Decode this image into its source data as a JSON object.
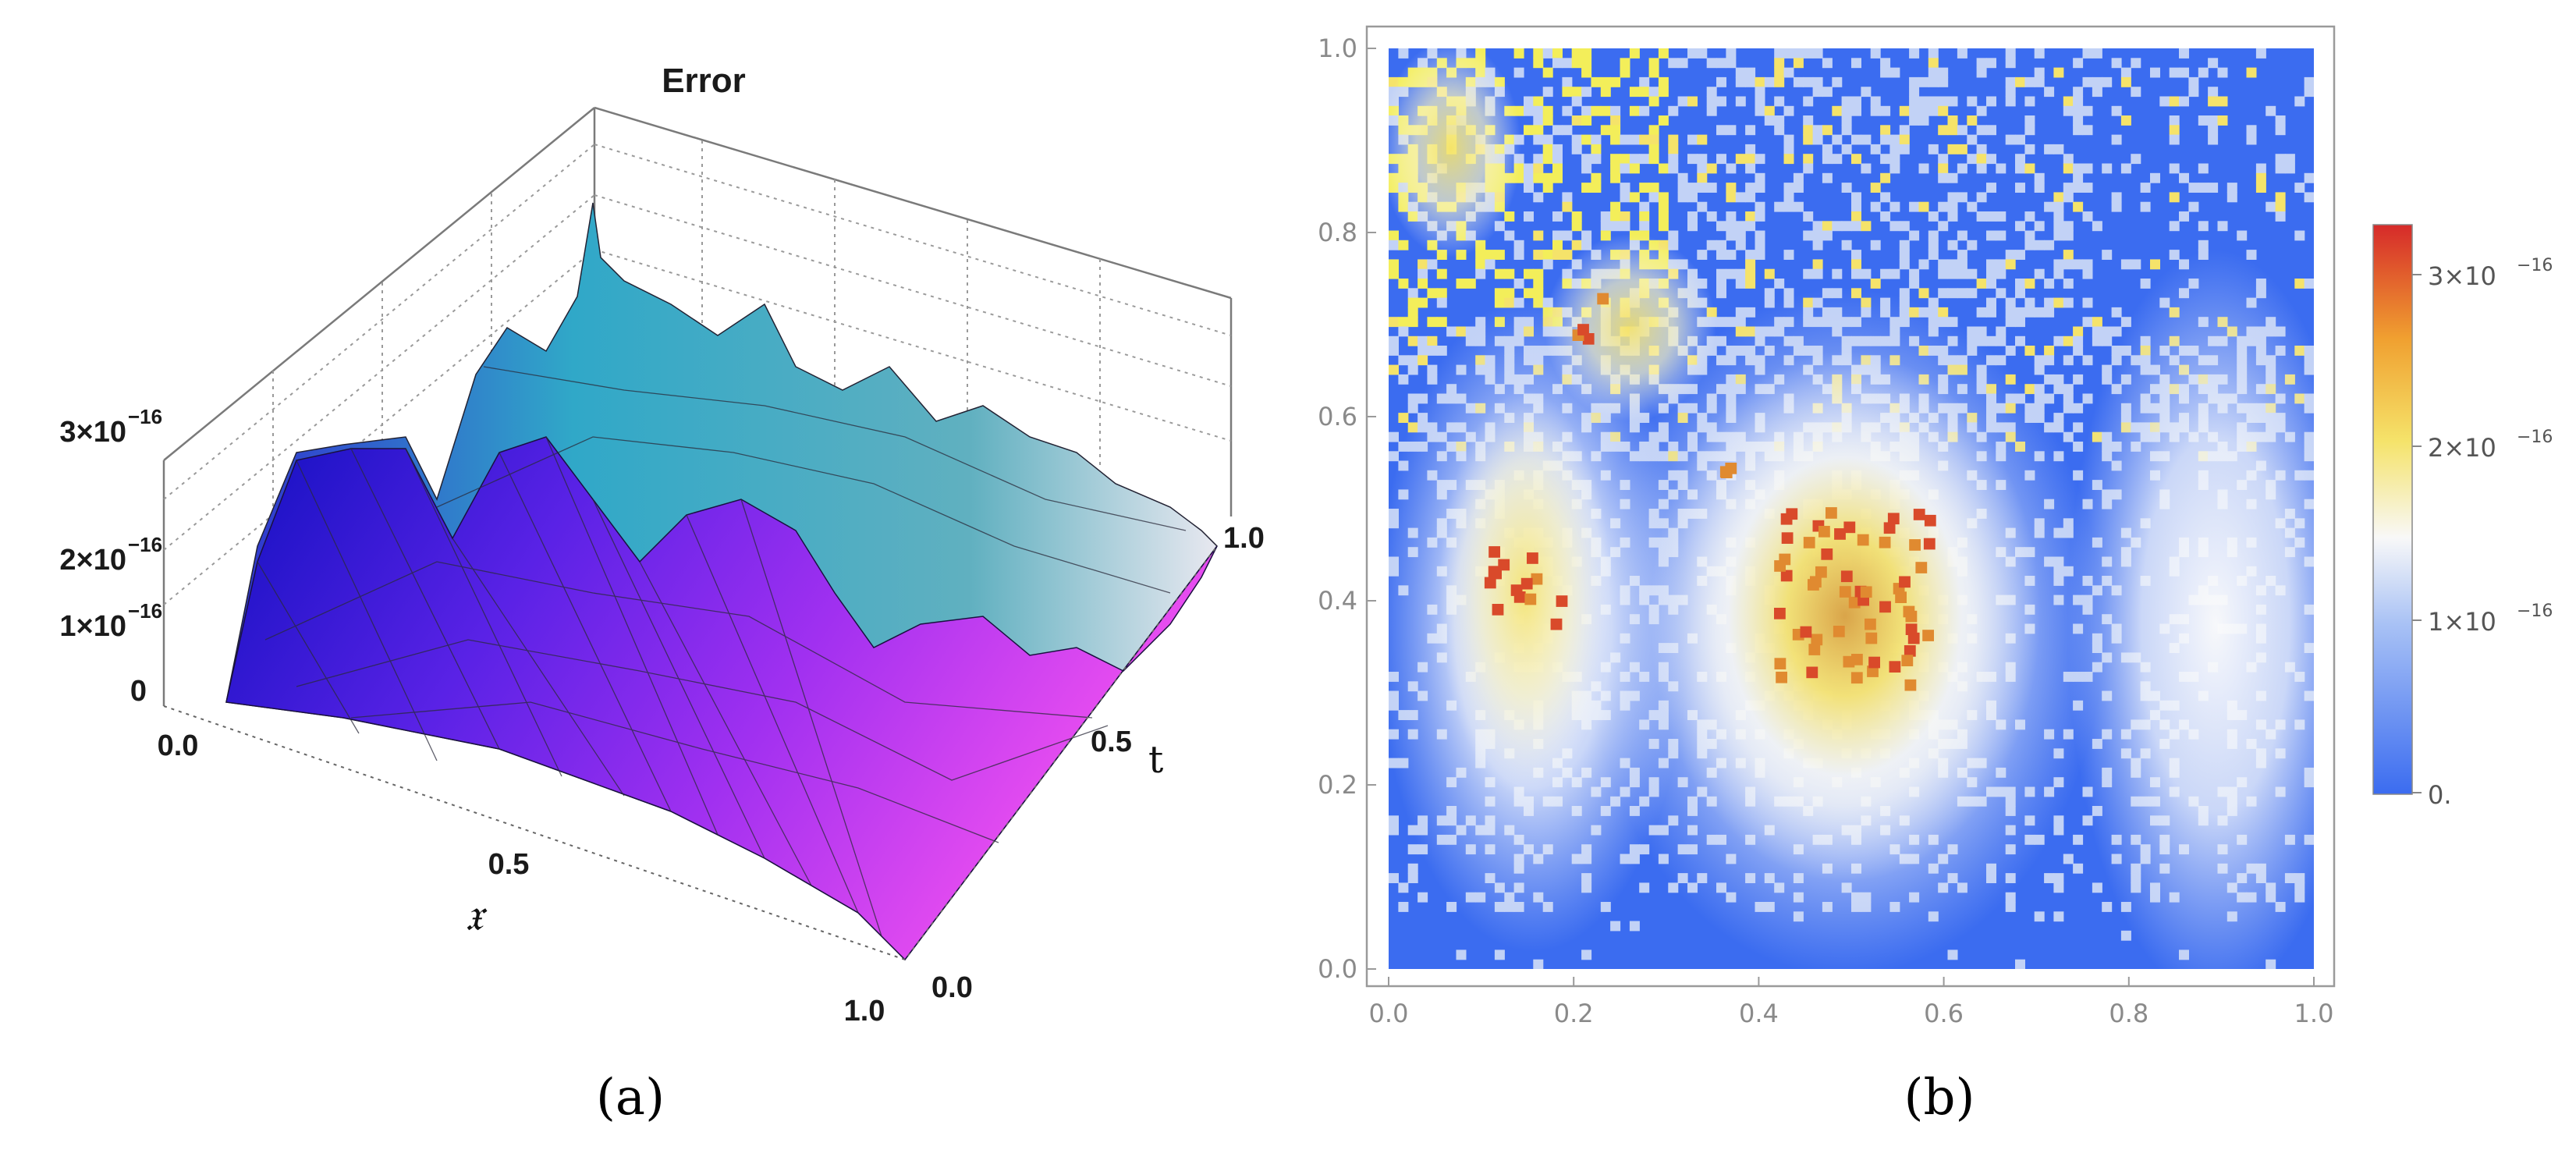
{
  "chart_data": [
    {
      "type": "surface3d",
      "panel": "(a)",
      "title": "Error",
      "xlabel": "𝔵",
      "ylabel": "t",
      "zlabel": "",
      "x_range": [
        0.0,
        1.0
      ],
      "t_range": [
        0.0,
        1.0
      ],
      "z_range": [
        0,
        3.3e-16
      ],
      "x_ticks": [
        "0.0",
        "0.5",
        "1.0"
      ],
      "t_ticks": [
        "0.0",
        "0.5",
        "1.0"
      ],
      "z_ticks": [
        "0",
        "1×10",
        "2×10",
        "3×10"
      ],
      "z_tick_exp": "−16",
      "grid": true,
      "colors": [
        "#1010c0",
        "#7020e0",
        "#e040f0",
        "#30b0b0",
        "#e0e0e8"
      ],
      "peaks": [
        {
          "x": 0.05,
          "t": 0.35,
          "z": 2.9e-16
        },
        {
          "x": 0.2,
          "t": 0.3,
          "z": 3.1e-16
        },
        {
          "x": 0.45,
          "t": 0.35,
          "z": 2.6e-16
        },
        {
          "x": 0.75,
          "t": 0.3,
          "z": 2.4e-16
        },
        {
          "x": 0.3,
          "t": 0.6,
          "z": 3.5e-16
        },
        {
          "x": 0.5,
          "t": 0.8,
          "z": 3.2e-16
        },
        {
          "x": 0.9,
          "t": 0.8,
          "z": 1.6e-16
        }
      ]
    },
    {
      "type": "heatmap",
      "panel": "(b)",
      "title": "",
      "xlabel": "",
      "ylabel": "",
      "xlim": [
        0.0,
        1.0
      ],
      "ylim": [
        0.0,
        1.0
      ],
      "x_ticks": [
        "0.0",
        "0.2",
        "0.4",
        "0.6",
        "0.8",
        "1.0"
      ],
      "y_ticks": [
        "0.0",
        "0.2",
        "0.4",
        "0.6",
        "0.8",
        "1.0"
      ],
      "colorbar": {
        "range": [
          0,
          3.3e-16
        ],
        "tick_labels": [
          "0.",
          "1×10",
          "2×10",
          "3×10"
        ],
        "tick_exp": "−16",
        "colors": [
          "#3b6cf0",
          "#a9c2f5",
          "#f8f8f8",
          "#f5e36a",
          "#f0a030",
          "#d62a2a"
        ]
      },
      "hotspots": [
        {
          "x": 0.15,
          "y": 0.4,
          "value": 2.3e-16
        },
        {
          "x": 0.5,
          "y": 0.4,
          "value": 3.1e-16
        },
        {
          "x": 0.9,
          "y": 0.4,
          "value": 1.6e-16
        },
        {
          "x": 0.1,
          "y": 0.85,
          "value": 2e-16
        }
      ]
    }
  ],
  "captions": [
    "(a)",
    "(b)"
  ]
}
